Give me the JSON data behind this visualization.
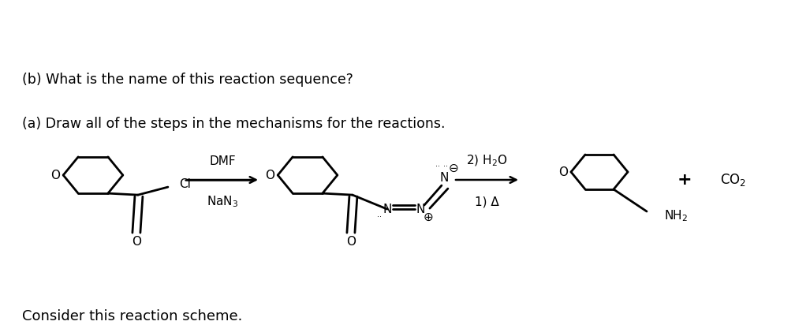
{
  "title": "Consider this reaction scheme.",
  "question_a": "(a) Draw all of the steps in the mechanisms for the reactions.",
  "question_b": "(b) What is the name of this reaction sequence?",
  "bg_color": "#ffffff",
  "text_color": "#000000",
  "title_fontsize": 13,
  "question_fontsize": 12.5,
  "reagent1_line1": "NaN$_3$",
  "reagent1_line2": "DMF",
  "reagent2_line1": "1) Δ",
  "reagent2_line2": "2) H$_2$O",
  "plus_sign": "+",
  "co2_label": "CO$_2$",
  "lw": 2.0
}
